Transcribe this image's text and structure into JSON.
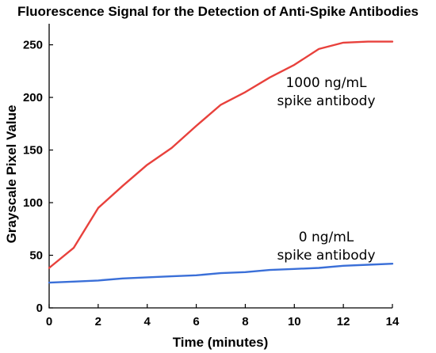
{
  "chart_data": {
    "type": "line",
    "title": "Fluorescence Signal for the Detection of Anti-Spike Antibodies",
    "xlabel": "Time (minutes)",
    "ylabel": "Grayscale Pixel Value",
    "xlim": [
      0,
      14
    ],
    "ylim": [
      0,
      270
    ],
    "x_ticks": [
      0,
      2,
      4,
      6,
      8,
      10,
      12,
      14
    ],
    "y_ticks": [
      0,
      50,
      100,
      150,
      200,
      250
    ],
    "grid": false,
    "legend": "none",
    "series": [
      {
        "color": "#e8413c",
        "x": [
          0,
          1,
          2,
          3,
          4,
          5,
          6,
          7,
          8,
          9,
          10,
          11,
          12,
          13,
          14
        ],
        "y": [
          38,
          57,
          95,
          116,
          136,
          152,
          173,
          193,
          205,
          219,
          231,
          246,
          252,
          253,
          253
        ]
      },
      {
        "color": "#3a6fd8",
        "x": [
          0,
          1,
          2,
          3,
          4,
          5,
          6,
          7,
          8,
          9,
          10,
          11,
          12,
          13,
          14
        ],
        "y": [
          24,
          25,
          26,
          28,
          29,
          30,
          31,
          33,
          34,
          36,
          37,
          38,
          40,
          41,
          42
        ]
      }
    ],
    "annotations": [
      {
        "lines": [
          "1000 ng/mL",
          "spike antibody"
        ],
        "x": 11.3,
        "y": 210
      },
      {
        "lines": [
          "0 ng/mL",
          "spike antibody"
        ],
        "x": 11.3,
        "y": 63
      }
    ]
  }
}
